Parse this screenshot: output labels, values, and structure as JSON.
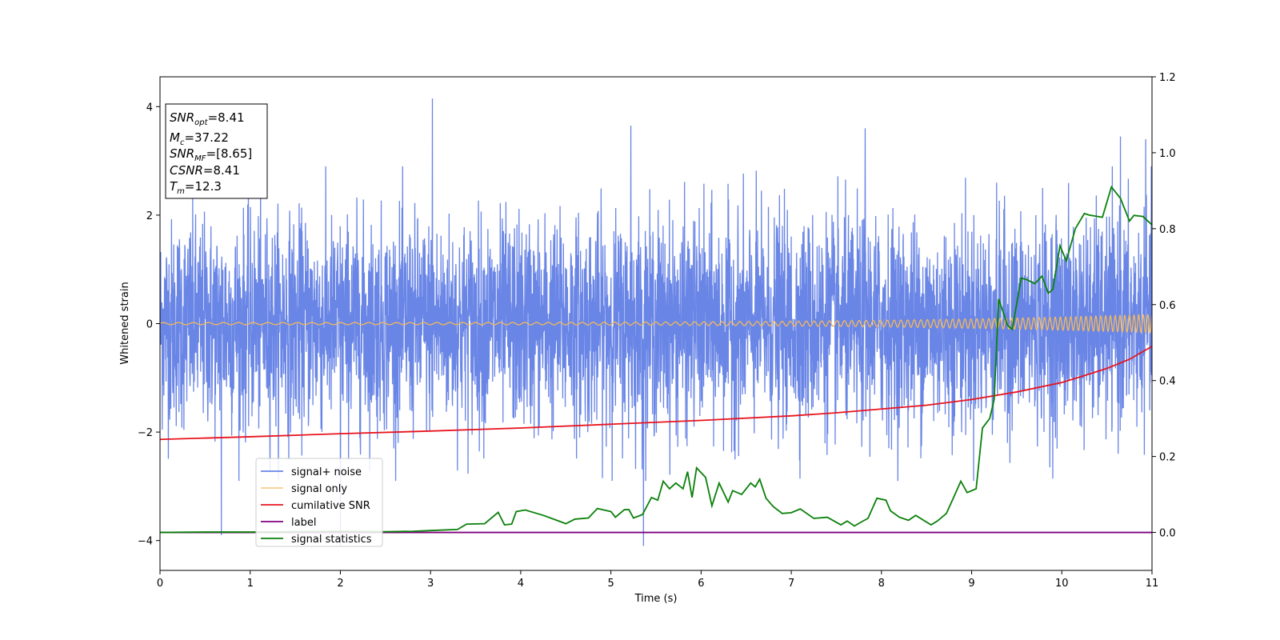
{
  "chart_data": {
    "type": "line",
    "xlabel": "Time (s)",
    "ylabel": "Whitened strain",
    "xlim": [
      0,
      11
    ],
    "ylim_left": [
      -4.55,
      4.55
    ],
    "ylim_right": [
      -0.1,
      1.2
    ],
    "x_ticks": [
      "0",
      "1",
      "2",
      "3",
      "4",
      "5",
      "6",
      "7",
      "8",
      "9",
      "10",
      "11"
    ],
    "y_ticks_left": [
      "−4",
      "−2",
      "0",
      "2",
      "4"
    ],
    "y_ticks_left_values": [
      -4,
      -2,
      0,
      2,
      4
    ],
    "y_ticks_right": [
      "0.0",
      "0.2",
      "0.4",
      "0.6",
      "0.8",
      "1.0",
      "1.2"
    ],
    "y_ticks_right_values": [
      0.0,
      0.2,
      0.4,
      0.6,
      0.8,
      1.0,
      1.2
    ],
    "legend_position": "lower-left",
    "colors": {
      "noise": "#6985e6",
      "signal": "#f5b95a",
      "csnr": "#e8141e",
      "label": "#800080",
      "stats": "#0a800a"
    },
    "series": [
      {
        "name": "signal+ noise",
        "key": "noise",
        "axis": "left",
        "style": "dense band",
        "typical_amplitude": 1.6,
        "notable_spikes": [
          [
            0.68,
            -3.9
          ],
          [
            2.0,
            -4.1
          ],
          [
            3.02,
            4.15
          ],
          [
            5.22,
            3.65
          ],
          [
            5.36,
            -4.1
          ],
          [
            7.82,
            3.6
          ],
          [
            10.65,
            3.45
          ],
          [
            10.93,
            3.4
          ]
        ]
      },
      {
        "name": "signal only",
        "key": "signal",
        "axis": "left",
        "style": "chirp",
        "final_amplitude": 0.17
      },
      {
        "name": "cumilative SNR",
        "key": "csnr",
        "axis": "right",
        "x": [
          0,
          1,
          2,
          3,
          4,
          5,
          6,
          7,
          7.5,
          8,
          8.5,
          9,
          9.5,
          10,
          10.25,
          10.5,
          10.75,
          11
        ],
        "y": [
          0.245,
          0.252,
          0.26,
          0.267,
          0.275,
          0.285,
          0.295,
          0.307,
          0.315,
          0.325,
          0.335,
          0.35,
          0.37,
          0.395,
          0.413,
          0.432,
          0.456,
          0.49
        ]
      },
      {
        "name": "label",
        "key": "label",
        "axis": "right",
        "x": [
          0,
          11
        ],
        "y": [
          0,
          0
        ]
      },
      {
        "name": "signal statistics",
        "key": "stats",
        "axis": "right",
        "x": [
          0,
          0.5,
          1.0,
          1.5,
          2.0,
          2.5,
          2.8,
          3.0,
          3.3,
          3.4,
          3.6,
          3.75,
          3.82,
          3.9,
          3.95,
          4.05,
          4.25,
          4.4,
          4.5,
          4.6,
          4.75,
          4.85,
          5.0,
          5.05,
          5.15,
          5.2,
          5.25,
          5.35,
          5.45,
          5.52,
          5.58,
          5.65,
          5.72,
          5.8,
          5.85,
          5.9,
          5.95,
          6.05,
          6.12,
          6.2,
          6.3,
          6.35,
          6.45,
          6.55,
          6.6,
          6.65,
          6.72,
          6.8,
          6.9,
          7.0,
          7.1,
          7.25,
          7.4,
          7.55,
          7.62,
          7.7,
          7.78,
          7.85,
          7.95,
          8.05,
          8.1,
          8.2,
          8.3,
          8.38,
          8.48,
          8.55,
          8.62,
          8.72,
          8.8,
          8.88,
          8.95,
          9.05,
          9.12,
          9.2,
          9.25,
          9.3,
          9.4,
          9.45,
          9.55,
          9.62,
          9.7,
          9.78,
          9.85,
          9.9,
          9.98,
          10.05,
          10.15,
          10.25,
          10.3,
          10.45,
          10.55,
          10.65,
          10.75,
          10.8,
          10.9,
          11.0
        ],
        "y": [
          0.0,
          0.001,
          0.001,
          0.002,
          0.003,
          0.002,
          0.003,
          0.005,
          0.008,
          0.022,
          0.023,
          0.053,
          0.02,
          0.022,
          0.055,
          0.059,
          0.045,
          0.032,
          0.023,
          0.035,
          0.038,
          0.063,
          0.055,
          0.04,
          0.06,
          0.06,
          0.038,
          0.047,
          0.092,
          0.085,
          0.135,
          0.115,
          0.13,
          0.115,
          0.16,
          0.092,
          0.17,
          0.145,
          0.07,
          0.13,
          0.08,
          0.11,
          0.1,
          0.13,
          0.12,
          0.14,
          0.09,
          0.068,
          0.05,
          0.052,
          0.062,
          0.037,
          0.04,
          0.02,
          0.03,
          0.017,
          0.028,
          0.037,
          0.09,
          0.085,
          0.057,
          0.04,
          0.032,
          0.045,
          0.03,
          0.02,
          0.03,
          0.05,
          0.092,
          0.135,
          0.105,
          0.115,
          0.275,
          0.3,
          0.35,
          0.615,
          0.545,
          0.535,
          0.67,
          0.665,
          0.655,
          0.675,
          0.63,
          0.64,
          0.755,
          0.715,
          0.8,
          0.84,
          0.836,
          0.83,
          0.91,
          0.88,
          0.82,
          0.835,
          0.832,
          0.81
        ]
      }
    ]
  },
  "info_box": {
    "snr_opt_value": "=8.41",
    "mc_value": "=37.22",
    "snr_mf_value": "=[8.65]",
    "csnr_value": "=8.41",
    "tm_value": "=12.3"
  }
}
